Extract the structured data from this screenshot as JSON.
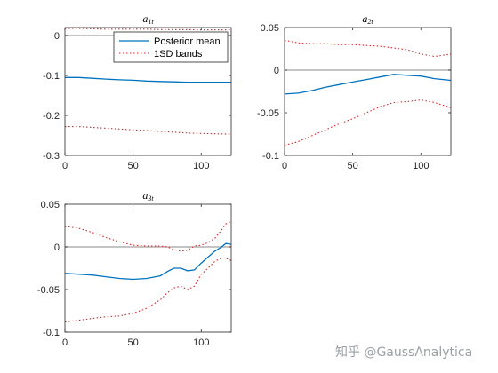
{
  "watermark": "知乎 @GaussAnalytica",
  "colors": {
    "mean": "#0072BD",
    "band": "#D62728",
    "zero": "#A0A0A0",
    "axis": "#262626"
  },
  "chart_data": [
    {
      "type": "line",
      "title": "a",
      "title_sub": "1t",
      "xlim": [
        0,
        122
      ],
      "ylim": [
        -0.3,
        0.02
      ],
      "xticks": [
        0,
        50,
        100
      ],
      "yticks": [
        0,
        -0.1,
        -0.2,
        -0.3
      ],
      "ytick_labels": [
        "0",
        "-0.1",
        "-0.2",
        "-0.3"
      ],
      "zero_line": 0,
      "legend": {
        "position": "top-right",
        "entries": [
          "Posterior mean",
          "1SD bands"
        ]
      },
      "series": [
        {
          "name": "Posterior mean",
          "role": "mean",
          "x": [
            0,
            10,
            20,
            30,
            40,
            50,
            60,
            70,
            80,
            90,
            100,
            110,
            122
          ],
          "y": [
            -0.105,
            -0.105,
            -0.107,
            -0.109,
            -0.111,
            -0.112,
            -0.114,
            -0.115,
            -0.116,
            -0.117,
            -0.117,
            -0.117,
            -0.117
          ]
        },
        {
          "name": "1SD bands",
          "role": "band",
          "x": [
            0,
            10,
            20,
            30,
            40,
            50,
            60,
            70,
            80,
            90,
            100,
            110,
            122
          ],
          "y": [
            0.018,
            0.018,
            0.017,
            0.016,
            0.016,
            0.016,
            0.016,
            0.015,
            0.015,
            0.015,
            0.014,
            0.014,
            0.014
          ]
        },
        {
          "name": "",
          "role": "band",
          "x": [
            0,
            10,
            20,
            30,
            40,
            50,
            60,
            70,
            80,
            90,
            100,
            110,
            122
          ],
          "y": [
            -0.228,
            -0.228,
            -0.23,
            -0.232,
            -0.234,
            -0.236,
            -0.238,
            -0.24,
            -0.242,
            -0.244,
            -0.245,
            -0.246,
            -0.247
          ]
        }
      ]
    },
    {
      "type": "line",
      "title": "a",
      "title_sub": "2t",
      "xlim": [
        0,
        122
      ],
      "ylim": [
        -0.1,
        0.05
      ],
      "xticks": [
        0,
        50,
        100
      ],
      "yticks": [
        0.05,
        0,
        -0.05,
        -0.1
      ],
      "ytick_labels": [
        "0.05",
        "0",
        "-0.05",
        "-0.1"
      ],
      "zero_line": 0,
      "series": [
        {
          "name": "Posterior mean",
          "role": "mean",
          "x": [
            0,
            10,
            20,
            30,
            40,
            50,
            60,
            70,
            80,
            90,
            100,
            110,
            122
          ],
          "y": [
            -0.028,
            -0.027,
            -0.024,
            -0.02,
            -0.017,
            -0.014,
            -0.011,
            -0.008,
            -0.005,
            -0.006,
            -0.007,
            -0.01,
            -0.012
          ]
        },
        {
          "name": "1SD bands",
          "role": "band",
          "x": [
            0,
            10,
            20,
            30,
            40,
            50,
            60,
            70,
            80,
            90,
            100,
            110,
            122
          ],
          "y": [
            0.035,
            0.032,
            0.031,
            0.031,
            0.03,
            0.03,
            0.029,
            0.028,
            0.026,
            0.024,
            0.019,
            0.016,
            0.019
          ]
        },
        {
          "name": "",
          "role": "band",
          "x": [
            0,
            10,
            20,
            30,
            40,
            50,
            60,
            70,
            80,
            90,
            100,
            110,
            122
          ],
          "y": [
            -0.088,
            -0.084,
            -0.077,
            -0.07,
            -0.063,
            -0.057,
            -0.05,
            -0.043,
            -0.038,
            -0.037,
            -0.035,
            -0.038,
            -0.044
          ]
        }
      ]
    },
    {
      "type": "line",
      "title": "a",
      "title_sub": "3t",
      "xlim": [
        0,
        122
      ],
      "ylim": [
        -0.1,
        0.05
      ],
      "xticks": [
        0,
        50,
        100
      ],
      "yticks": [
        0.05,
        0,
        -0.05,
        -0.1
      ],
      "ytick_labels": [
        "0.05",
        "0",
        "-0.05",
        "-0.1"
      ],
      "zero_line": 0,
      "series": [
        {
          "name": "Posterior mean",
          "role": "mean",
          "x": [
            0,
            10,
            20,
            30,
            40,
            50,
            60,
            70,
            75,
            80,
            85,
            90,
            95,
            100,
            105,
            110,
            115,
            118,
            122
          ],
          "y": [
            -0.031,
            -0.032,
            -0.033,
            -0.035,
            -0.037,
            -0.038,
            -0.037,
            -0.034,
            -0.029,
            -0.025,
            -0.025,
            -0.028,
            -0.027,
            -0.019,
            -0.012,
            -0.005,
            0,
            0.004,
            0.003
          ]
        },
        {
          "name": "1SD bands",
          "role": "band",
          "x": [
            0,
            10,
            20,
            30,
            40,
            50,
            60,
            70,
            75,
            80,
            85,
            90,
            95,
            100,
            105,
            110,
            115,
            118,
            122
          ],
          "y": [
            0.024,
            0.022,
            0.017,
            0.011,
            0.006,
            0.002,
            0.001,
            0.001,
            0.0,
            -0.003,
            -0.005,
            -0.004,
            0.001,
            0.002,
            0.005,
            0.01,
            0.02,
            0.027,
            0.03
          ]
        },
        {
          "name": "",
          "role": "band",
          "x": [
            0,
            10,
            20,
            30,
            40,
            50,
            60,
            70,
            75,
            80,
            85,
            90,
            95,
            100,
            105,
            110,
            115,
            118,
            122
          ],
          "y": [
            -0.088,
            -0.086,
            -0.084,
            -0.082,
            -0.081,
            -0.078,
            -0.072,
            -0.062,
            -0.054,
            -0.048,
            -0.046,
            -0.05,
            -0.046,
            -0.032,
            -0.025,
            -0.017,
            -0.013,
            -0.013,
            -0.016
          ]
        }
      ]
    }
  ]
}
